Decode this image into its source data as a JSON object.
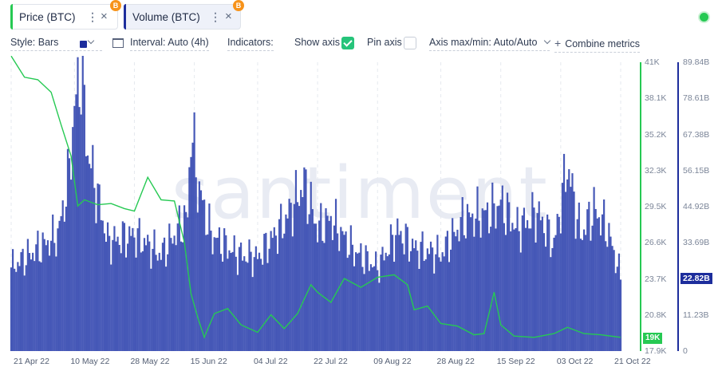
{
  "tabs": [
    {
      "label": "Price (BTC)",
      "accent": "#26c953",
      "badge": "B",
      "icon_name": "bitcoin-icon"
    },
    {
      "label": "Volume (BTC)",
      "accent": "#1d2d9c",
      "badge": "B",
      "icon_name": "bitcoin-icon"
    }
  ],
  "status": {
    "color": "#26c953",
    "icon_name": "online-status-icon"
  },
  "settings": {
    "style": "Style: Bars",
    "color_value": "#1d2d9c",
    "interval": "Interval: Auto (4h)",
    "indicators": "Indicators:",
    "show_axis": "Show axis",
    "show_axis_checked": true,
    "pin_axis": "Pin axis",
    "pin_axis_checked": false,
    "axis_maxmin": "Axis max/min: Auto/Auto",
    "combine": "Combine metrics",
    "combine_icon": "plus-icon"
  },
  "watermark": "santiment",
  "chart_data": {
    "type": "bar",
    "x_ticks": [
      "21 Apr 22",
      "10 May 22",
      "28 May 22",
      "15 Jun 22",
      "04 Jul 22",
      "22 Jul 22",
      "09 Aug 22",
      "28 Aug 22",
      "15 Sep 22",
      "03 Oct 22",
      "21 Oct 22"
    ],
    "price_axis": {
      "ticks": [
        "41K",
        "38.1K",
        "35.2K",
        "32.3K",
        "29.5K",
        "26.6K",
        "23.7K",
        "20.8K",
        "17.9K"
      ],
      "ylim": [
        17900,
        41000
      ],
      "color": "#26c953"
    },
    "volume_axis": {
      "ticks": [
        "89.84B",
        "78.61B",
        "67.38B",
        "56.15B",
        "44.92B",
        "33.69B",
        "22.82B",
        "11.23B",
        "0"
      ],
      "ylim": [
        0,
        89840000000
      ],
      "color": "#1d2d9c"
    },
    "current_price_label": "19K",
    "current_volume_label": "22.82B",
    "series": [
      {
        "name": "Price (BTC)",
        "kind": "line",
        "color": "#26c953",
        "x": [
          "21 Apr 22",
          "25 Apr 22",
          "29 Apr 22",
          "3 May 22",
          "6 May 22",
          "9 May 22",
          "11 May 22",
          "13 May 22",
          "17 May 22",
          "21 May 22",
          "25 May 22",
          "28 May 22",
          "1 Jun 22",
          "5 Jun 22",
          "9 Jun 22",
          "12 Jun 22",
          "14 Jun 22",
          "16 Jun 22",
          "18 Jun 22",
          "21 Jun 22",
          "25 Jun 22",
          "29 Jun 22",
          "4 Jul 22",
          "8 Jul 22",
          "12 Jul 22",
          "16 Jul 22",
          "20 Jul 22",
          "22 Jul 22",
          "26 Jul 22",
          "30 Jul 22",
          "4 Aug 22",
          "9 Aug 22",
          "14 Aug 22",
          "18 Aug 22",
          "20 Aug 22",
          "24 Aug 22",
          "28 Aug 22",
          "2 Sep 22",
          "7 Sep 22",
          "10 Sep 22",
          "13 Sep 22",
          "15 Sep 22",
          "19 Sep 22",
          "25 Sep 22",
          "1 Oct 22",
          "5 Oct 22",
          "10 Oct 22",
          "15 Oct 22",
          "21 Oct 22"
        ],
        "values": [
          41500,
          39800,
          39600,
          38600,
          36000,
          33500,
          29500,
          30000,
          29600,
          29700,
          29300,
          29100,
          31800,
          30000,
          29900,
          26600,
          22500,
          20600,
          19000,
          20900,
          21300,
          20000,
          19400,
          20800,
          19700,
          20900,
          23200,
          22600,
          21800,
          23700,
          23000,
          23800,
          24000,
          23200,
          21200,
          21500,
          20100,
          19900,
          19200,
          19300,
          22600,
          20000,
          19100,
          19000,
          19300,
          19800,
          19300,
          19200,
          19000
        ]
      },
      {
        "name": "Volume (BTC)",
        "kind": "bar",
        "color": "#3c4fb3",
        "x": [
          "21 Apr 22",
          "28 Apr 22",
          "5 May 22",
          "8 May 22",
          "10 May 22",
          "12 May 22",
          "14 May 22",
          "20 May 22",
          "28 May 22",
          "5 Jun 22",
          "13 Jun 22",
          "14 Jun 22",
          "16 Jun 22",
          "20 Jun 22",
          "28 Jun 22",
          "4 Jul 22",
          "12 Jul 22",
          "18 Jul 22",
          "22 Jul 22",
          "26 Jul 22",
          "2 Aug 22",
          "9 Aug 22",
          "15 Aug 22",
          "20 Aug 22",
          "28 Aug 22",
          "4 Sep 22",
          "12 Sep 22",
          "15 Sep 22",
          "20 Sep 22",
          "26 Sep 22",
          "1 Oct 22",
          "5 Oct 22",
          "9 Oct 22",
          "13 Oct 22",
          "17 Oct 22",
          "21 Oct 22"
        ],
        "values": [
          26000000000,
          31000000000,
          36000000000,
          52000000000,
          75000000000,
          88000000000,
          62000000000,
          34000000000,
          36000000000,
          30000000000,
          42000000000,
          70000000000,
          52000000000,
          36000000000,
          30000000000,
          29000000000,
          40000000000,
          52000000000,
          38000000000,
          41000000000,
          31000000000,
          26000000000,
          37000000000,
          32000000000,
          30000000000,
          41000000000,
          43000000000,
          46000000000,
          38000000000,
          43000000000,
          33000000000,
          58000000000,
          36000000000,
          44000000000,
          38000000000,
          23000000000
        ]
      }
    ]
  }
}
